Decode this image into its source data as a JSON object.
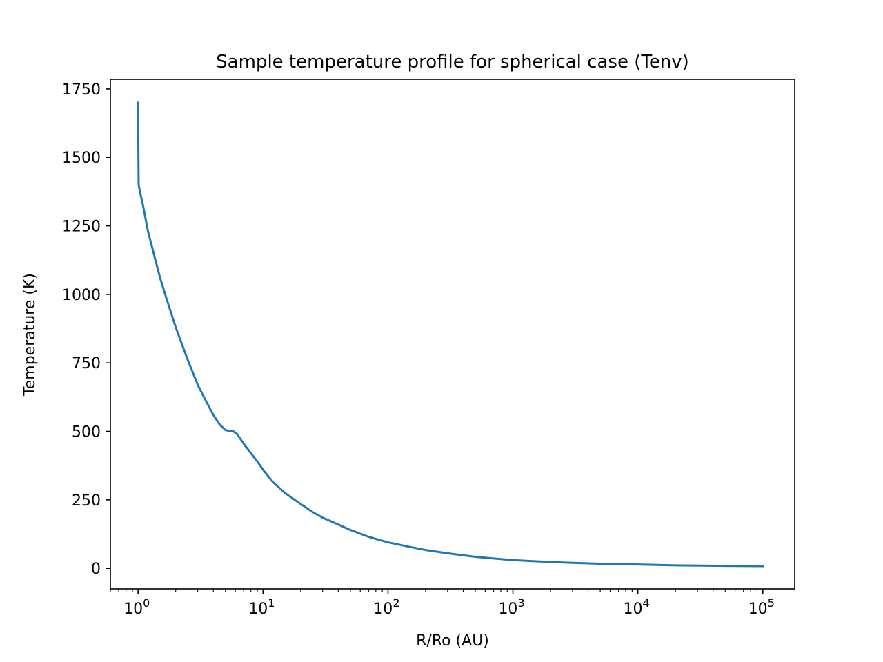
{
  "chart_data": {
    "type": "line",
    "title": "Sample temperature profile for spherical case (Tenv)",
    "xlabel": "R/Ro (AU)",
    "ylabel": "Temperature (K)",
    "xscale": "log",
    "xlim": [
      0.6,
      180000
    ],
    "ylim": [
      -75,
      1785
    ],
    "grid": false,
    "legend": "none",
    "color": "#1f77b4",
    "y_ticks": [
      0,
      250,
      500,
      750,
      1000,
      1250,
      1500,
      1750
    ],
    "x_ticks": [
      {
        "value": 1,
        "base": "10",
        "exp": "0"
      },
      {
        "value": 10,
        "base": "10",
        "exp": "1"
      },
      {
        "value": 100,
        "base": "10",
        "exp": "2"
      },
      {
        "value": 1000,
        "base": "10",
        "exp": "3"
      },
      {
        "value": 10000,
        "base": "10",
        "exp": "4"
      },
      {
        "value": 100000,
        "base": "10",
        "exp": "5"
      }
    ],
    "series": [
      {
        "x": [
          1.0,
          1.0,
          1.01,
          1.04,
          1.1,
          1.2,
          1.35,
          1.5,
          1.7,
          2.0,
          2.5,
          3.0,
          3.5,
          4.0,
          4.5,
          5.0,
          5.5,
          5.8,
          6.2,
          7.0,
          8.0,
          9.0,
          10,
          12,
          15,
          20,
          25,
          30,
          40,
          50,
          70,
          100,
          150,
          200,
          300,
          500,
          700,
          1000,
          1500,
          2000,
          3000,
          5000,
          10000,
          20000,
          50000,
          100000
        ],
        "y": [
          1700,
          1680,
          1400,
          1370,
          1320,
          1230,
          1140,
          1060,
          980,
          880,
          760,
          670,
          610,
          560,
          525,
          505,
          500,
          500,
          490,
          455,
          420,
          390,
          360,
          315,
          275,
          235,
          205,
          185,
          160,
          140,
          115,
          95,
          78,
          67,
          55,
          42,
          36,
          30,
          26,
          23,
          20,
          17,
          14,
          11,
          9,
          8
        ]
      }
    ]
  }
}
